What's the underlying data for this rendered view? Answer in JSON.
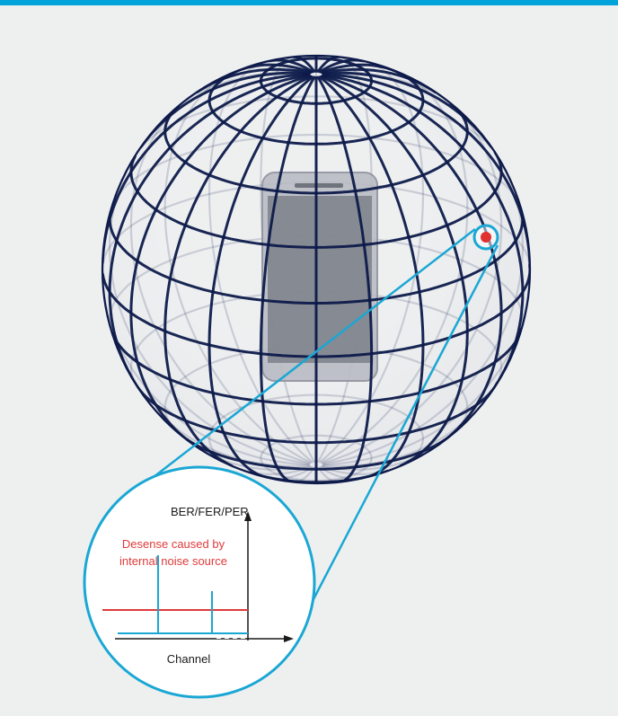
{
  "colors": {
    "background": "#eef0f0",
    "accent_bar": "#00a3d9",
    "grid_line": "#0d1a4a",
    "callout_line": "#1aa7d4",
    "hotspot": "#e03030",
    "desense_text": "#e03a3a",
    "desense_line": "#e03a3a",
    "baseline_line": "#1aa7d4",
    "axis": "#1a1a1a"
  },
  "device": {
    "icon": "smartphone-icon"
  },
  "hotspot": {
    "icon": "noise-source-marker-icon"
  },
  "inset": {
    "y_axis_label": "BER/FER/PER",
    "x_axis_label": "Channel",
    "annotation_line1": "Desense caused by",
    "annotation_line2": "internal noise source"
  }
}
